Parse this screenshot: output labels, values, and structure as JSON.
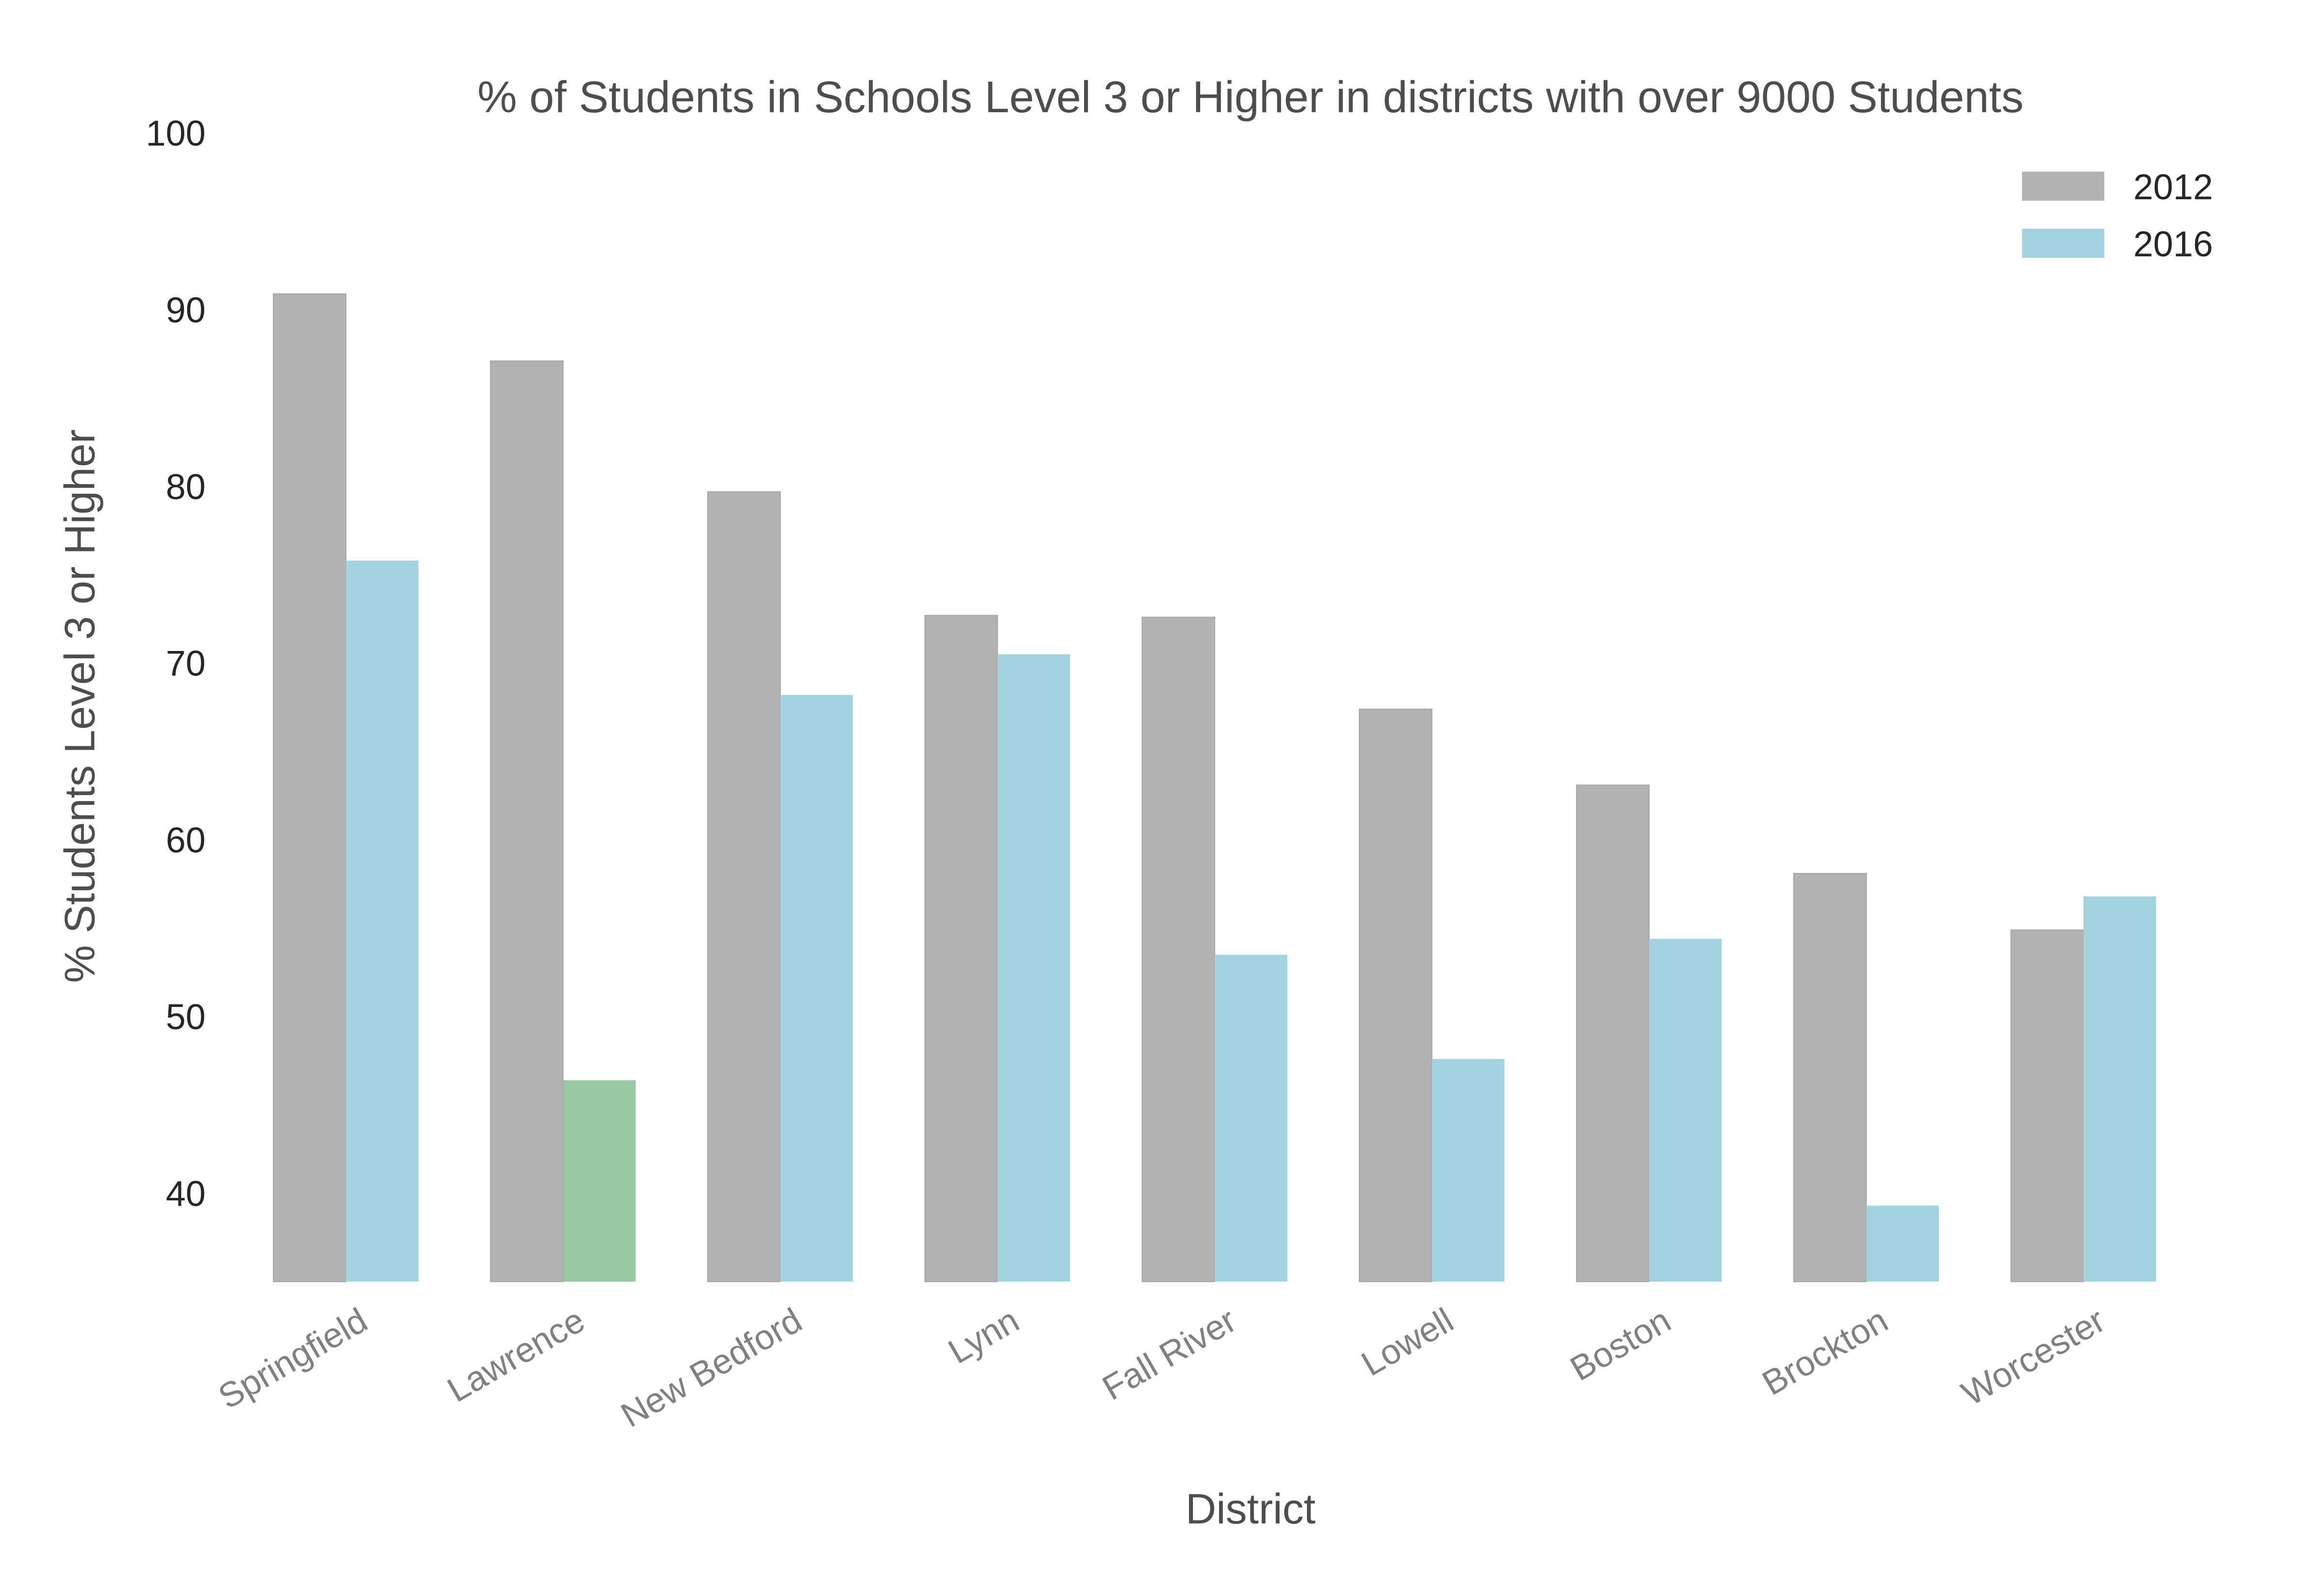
{
  "chart_data": {
    "type": "bar",
    "title": "% of Students in Schools Level 3 or Higher in districts with over 9000 Students",
    "xlabel": "District",
    "ylabel": "% Students Level 3 or Higher",
    "ylim": [
      35,
      100
    ],
    "yticks": [
      "40",
      "50",
      "60",
      "70",
      "80",
      "90",
      "100"
    ],
    "grid": false,
    "legend_position": "top-right",
    "categories": [
      "Springfield",
      "Lawrence",
      "New Bedford",
      "Lynn",
      "Fall River",
      "Lowell",
      "Boston",
      "Brockton",
      "Worcester"
    ],
    "series": [
      {
        "name": "2012",
        "color": "#b2b2b2",
        "values": [
          90.9,
          87.1,
          79.7,
          72.7,
          72.6,
          67.4,
          63.1,
          58.1,
          54.9
        ]
      },
      {
        "name": "2016",
        "color": "#a3d2e0",
        "highlight": {
          "category": "Lawrence",
          "color": "#99c9a3"
        },
        "values": [
          75.8,
          46.4,
          68.2,
          70.5,
          53.5,
          47.6,
          54.4,
          39.3,
          56.8
        ]
      }
    ]
  }
}
